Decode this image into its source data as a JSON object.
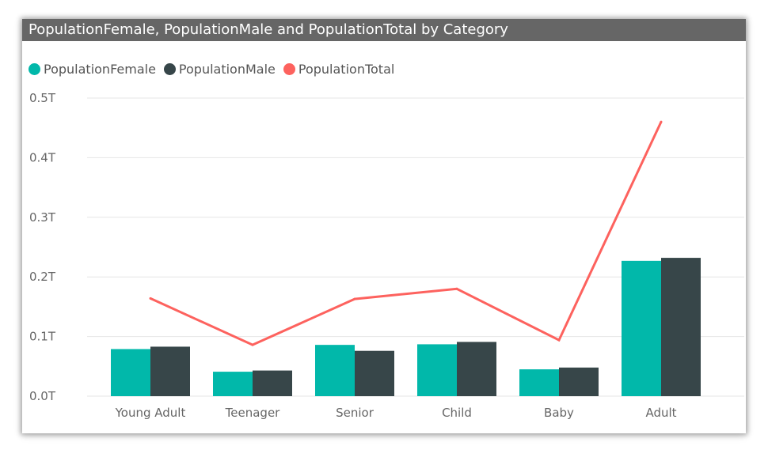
{
  "chart_data": {
    "type": "bar",
    "title": "PopulationFemale, PopulationMale and PopulationTotal by Category",
    "categories": [
      "Young Adult",
      "Teenager",
      "Senior",
      "Child",
      "Baby",
      "Adult"
    ],
    "series": [
      {
        "name": "PopulationFemale",
        "type": "bar",
        "color": "#01B8AA",
        "values": [
          0.079,
          0.041,
          0.086,
          0.087,
          0.045,
          0.227
        ]
      },
      {
        "name": "PopulationMale",
        "type": "bar",
        "color": "#374649",
        "values": [
          0.083,
          0.043,
          0.076,
          0.091,
          0.048,
          0.232
        ]
      },
      {
        "name": "PopulationTotal",
        "type": "line",
        "color": "#FD625E",
        "values": [
          0.164,
          0.086,
          0.163,
          0.18,
          0.094,
          0.46
        ]
      }
    ],
    "yticks": [
      "0.0T",
      "0.1T",
      "0.2T",
      "0.3T",
      "0.4T",
      "0.5T"
    ],
    "ylim": [
      0,
      0.5
    ],
    "grid": true,
    "legend_position": "top-left"
  }
}
